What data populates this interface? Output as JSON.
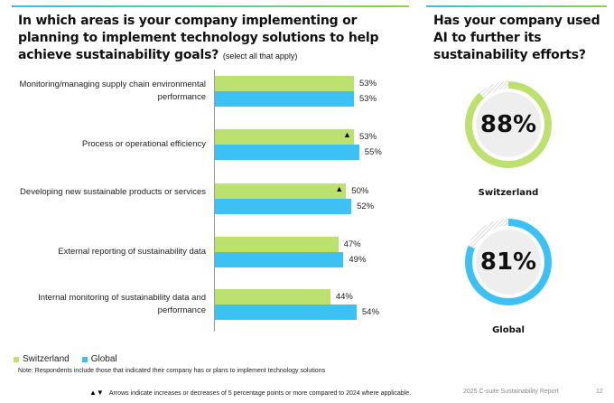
{
  "left_question": {
    "title": "In which areas is your company implementing or planning to implement technology solutions to help achieve sustainability goals?",
    "subtitle": "(select all that apply)"
  },
  "right_question": {
    "title": "Has your company used AI to further its sustainability efforts?"
  },
  "colors": {
    "switzerland": "#bde16f",
    "global": "#3cc1f5",
    "unfilled": "#d9d9d9",
    "donut_center": "#eeeeee"
  },
  "chart_data": [
    {
      "type": "bar",
      "orientation": "horizontal",
      "title": "In which areas is your company implementing or planning to implement technology solutions to help achieve sustainability goals? (select all that apply)",
      "categories": [
        "Monitoring/managing supply chain environmental performance",
        "Process or operational efficiency",
        "Developing new sustainable products or services",
        "External reporting of sustainability data",
        "Internal monitoring of sustainability data and performance"
      ],
      "series": [
        {
          "name": "Switzerland",
          "values": [
            53,
            53,
            50,
            47,
            44
          ],
          "labels": [
            "53%",
            "53%",
            "50%",
            "47%",
            "44%"
          ],
          "markers": [
            "",
            "up",
            "up",
            "",
            ""
          ]
        },
        {
          "name": "Global",
          "values": [
            53,
            55,
            52,
            49,
            54
          ],
          "labels": [
            "53%",
            "55%",
            "52%",
            "49%",
            "54%"
          ]
        }
      ],
      "xlim": [
        0,
        100
      ],
      "grid": false,
      "legend": "bottom-left",
      "xlabel": "",
      "ylabel": ""
    },
    {
      "type": "pie",
      "subtype": "donut",
      "title": "Has your company used AI to further its sustainability efforts?",
      "items": [
        {
          "name": "Switzerland",
          "value": 88,
          "label": "88%"
        },
        {
          "name": "Global",
          "value": 81,
          "label": "81%"
        }
      ]
    }
  ],
  "legend": {
    "items": [
      {
        "label": "Switzerland"
      },
      {
        "label": "Global"
      }
    ]
  },
  "note": "Note: Respondents include those that indicated their company has or plans to implement technology solutions",
  "arrow_note": {
    "glyphs": "▲▼",
    "text": "Arrows indicate increases or decreases of 5 percentage points or more compared to 2024 where applicable."
  },
  "footer": {
    "report": "2025 C-suite Sustainability Report",
    "page": "12"
  }
}
